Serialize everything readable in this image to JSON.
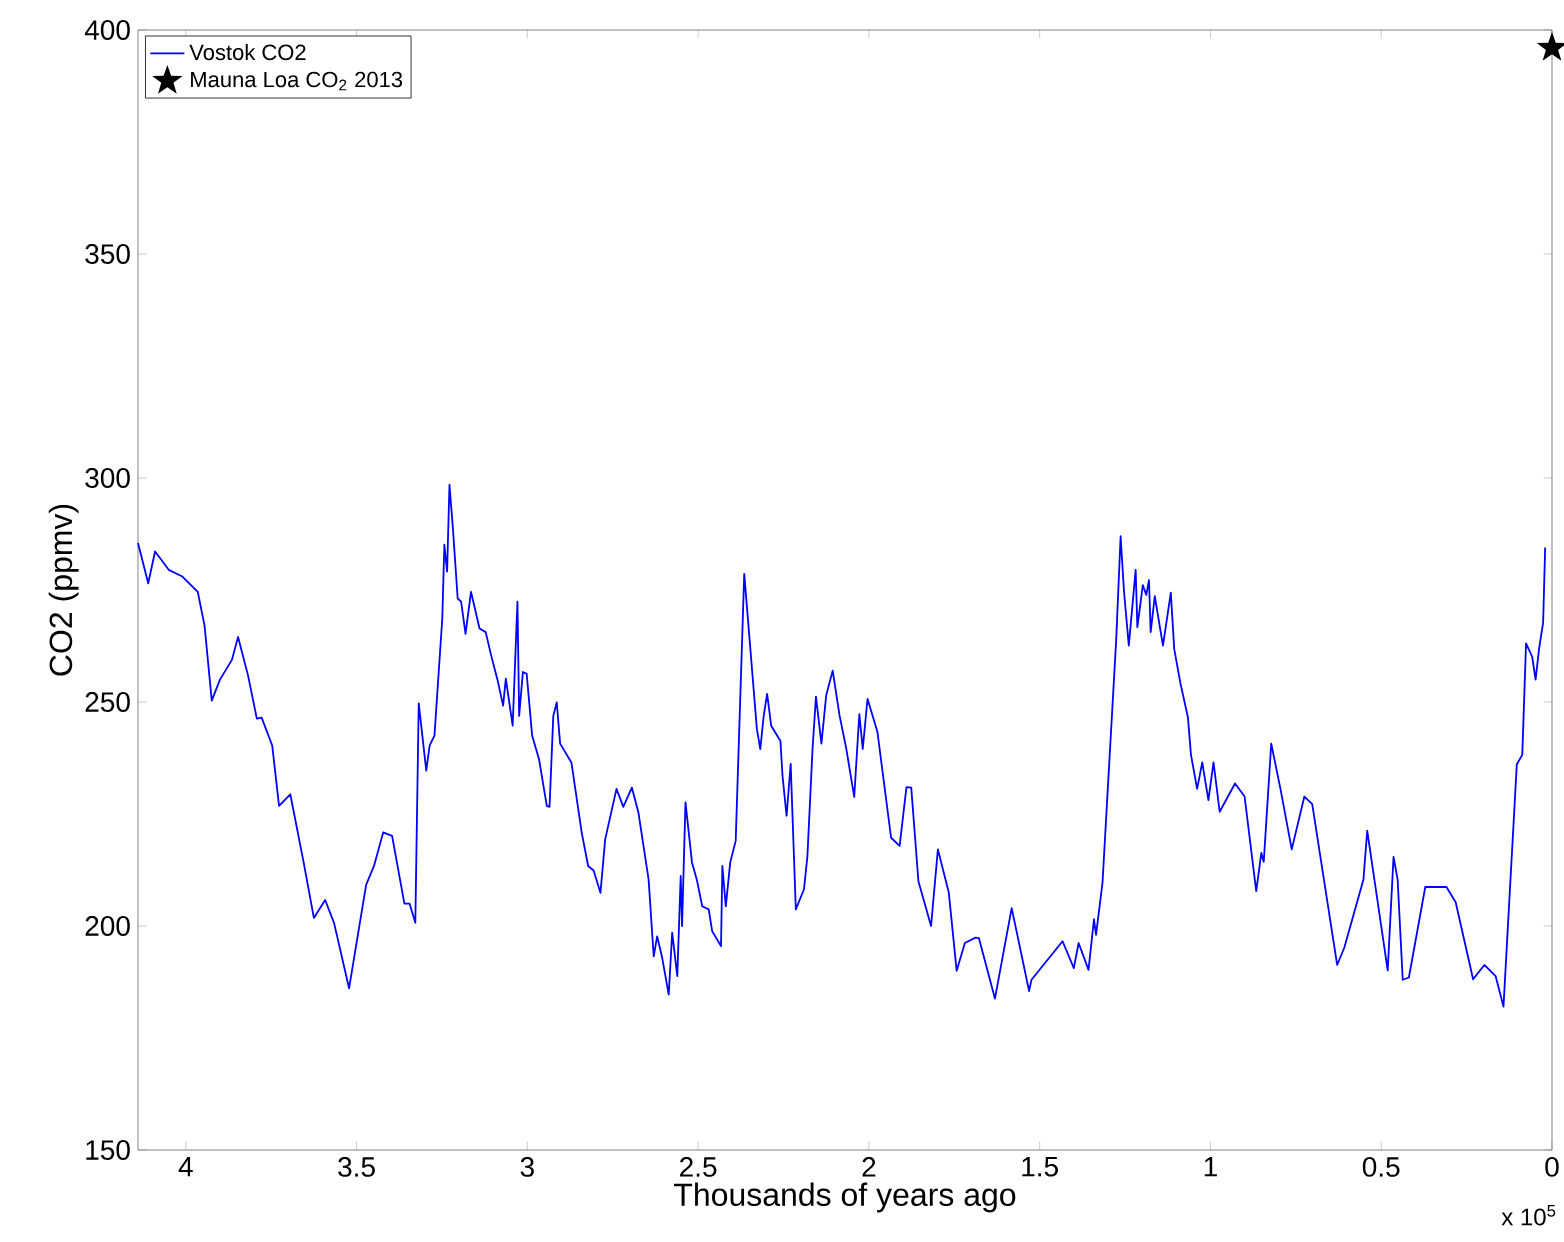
{
  "chart_data": {
    "type": "line",
    "xlabel": "Thousands of years ago",
    "ylabel": "CO2 (ppmv)",
    "xlim": [
      4.14,
      0
    ],
    "ylim": [
      150,
      400
    ],
    "xticks": [
      4,
      3.5,
      3,
      2.5,
      2,
      1.5,
      1,
      0.5,
      0
    ],
    "yticks": [
      150,
      200,
      250,
      300,
      350,
      400
    ],
    "annotations": [
      "x 10$^{5}$"
    ],
    "legend": "top left",
    "series": [
      {
        "name": "Vostok CO2",
        "color": "#0000ff",
        "line_style": "solid",
        "x": [
          4.14,
          4.11,
          4.09,
          4.05,
          4.01,
          3.965,
          3.945,
          3.924,
          3.9,
          3.865,
          3.847,
          3.818,
          3.792,
          3.778,
          3.747,
          3.727,
          3.694,
          3.655,
          3.625,
          3.592,
          3.566,
          3.522,
          3.472,
          3.449,
          3.422,
          3.396,
          3.36,
          3.345,
          3.328,
          3.318,
          3.296,
          3.286,
          3.272,
          3.249,
          3.243,
          3.235,
          3.228,
          3.218,
          3.204,
          3.194,
          3.181,
          3.165,
          3.14,
          3.122,
          3.106,
          3.086,
          3.071,
          3.063,
          3.043,
          3.029,
          3.024,
          3.013,
          3.002,
          2.986,
          2.966,
          2.943,
          2.935,
          2.924,
          2.914,
          2.904,
          2.871,
          2.841,
          2.822,
          2.806,
          2.786,
          2.772,
          2.739,
          2.719,
          2.694,
          2.675,
          2.645,
          2.63,
          2.62,
          2.606,
          2.586,
          2.576,
          2.561,
          2.551,
          2.547,
          2.537,
          2.518,
          2.504,
          2.488,
          2.469,
          2.459,
          2.433,
          2.429,
          2.419,
          2.406,
          2.39,
          2.365,
          2.328,
          2.318,
          2.308,
          2.298,
          2.286,
          2.259,
          2.253,
          2.241,
          2.229,
          2.214,
          2.19,
          2.18,
          2.165,
          2.155,
          2.139,
          2.125,
          2.106,
          2.086,
          2.066,
          2.043,
          2.028,
          2.018,
          2.004,
          1.975,
          1.935,
          1.91,
          1.89,
          1.876,
          1.855,
          1.818,
          1.798,
          1.766,
          1.743,
          1.719,
          1.688,
          1.678,
          1.631,
          1.582,
          1.531,
          1.524,
          1.433,
          1.4,
          1.386,
          1.357,
          1.341,
          1.335,
          1.316,
          1.276,
          1.263,
          1.253,
          1.239,
          1.219,
          1.214,
          1.198,
          1.188,
          1.18,
          1.175,
          1.163,
          1.139,
          1.116,
          1.106,
          1.088,
          1.066,
          1.057,
          1.039,
          1.024,
          1.006,
          0.991,
          0.973,
          0.928,
          0.9,
          0.866,
          0.851,
          0.844,
          0.822,
          0.795,
          0.762,
          0.725,
          0.702,
          0.629,
          0.608,
          0.552,
          0.541,
          0.481,
          0.464,
          0.452,
          0.437,
          0.419,
          0.371,
          0.309,
          0.282,
          0.231,
          0.198,
          0.165,
          0.142,
          0.103,
          0.087,
          0.076,
          0.058,
          0.048,
          0.038,
          0.026,
          0.02
        ],
        "values": [
          285.5,
          276.5,
          283.6,
          279.5,
          278,
          274.6,
          267,
          250.3,
          255,
          259.4,
          264.5,
          256,
          246.3,
          246.5,
          240.3,
          226.8,
          229.4,
          214.2,
          201.8,
          205.8,
          200.7,
          186.1,
          209.2,
          213.4,
          220.9,
          220.1,
          205,
          205,
          200.7,
          249.7,
          234.7,
          240.3,
          242.5,
          268.7,
          285.1,
          279.1,
          298.5,
          288.8,
          273.1,
          272.4,
          265.2,
          274.6,
          266.4,
          265.6,
          260.4,
          254.5,
          249.2,
          255.2,
          244.7,
          272.4,
          246.9,
          256.7,
          256.3,
          242.5,
          237.3,
          226.8,
          226.6,
          246.9,
          249.9,
          240.7,
          236.5,
          220.9,
          213.4,
          212.4,
          207.4,
          219.4,
          230.6,
          226.6,
          230.9,
          225.4,
          210.4,
          193.2,
          197.7,
          193.2,
          184.7,
          198.5,
          188.8,
          211.2,
          200,
          227.6,
          214.2,
          210.4,
          204.4,
          203.7,
          198.9,
          195.5,
          213.4,
          204.4,
          214.2,
          219,
          278.6,
          244,
          239.5,
          246.9,
          251.8,
          244.7,
          241.3,
          233.6,
          224.6,
          236.2,
          203.7,
          208.2,
          215.6,
          239.5,
          251.2,
          240.7,
          251.5,
          257,
          247,
          239.5,
          228.8,
          247.3,
          239.5,
          250.7,
          243.3,
          219.7,
          217.9,
          231,
          230.9,
          210,
          200,
          217.1,
          207.4,
          190,
          196.2,
          197.4,
          197.3,
          183.8,
          204,
          185.5,
          188,
          196.6,
          190.6,
          196.2,
          190.2,
          201.5,
          198,
          209.7,
          263.8,
          287,
          274.6,
          262.6,
          279.5,
          266.7,
          276.1,
          273.9,
          277.2,
          265.6,
          273.6,
          262.6,
          274.4,
          261.8,
          254.2,
          246.6,
          238.2,
          230.6,
          236.5,
          228.1,
          236.5,
          225.5,
          231.8,
          228.9,
          207.8,
          216.3,
          214.3,
          240.7,
          230.6,
          217.1,
          228.9,
          227.2,
          191.3,
          195.2,
          210.4,
          221.3,
          190.1,
          215.4,
          210.4,
          188,
          188.5,
          208.7,
          208.7,
          205.3,
          188.1,
          191.3,
          188.8,
          182,
          236.1,
          238.2,
          263.1,
          260.1,
          255,
          261.8,
          267.7,
          284.5
        ]
      },
      {
        "name": "Mauna Loa CO$_{2}$ 2013",
        "type": "scatter",
        "color": "#000000",
        "marker": "star",
        "x": [
          0
        ],
        "values": [
          396
        ]
      }
    ]
  }
}
